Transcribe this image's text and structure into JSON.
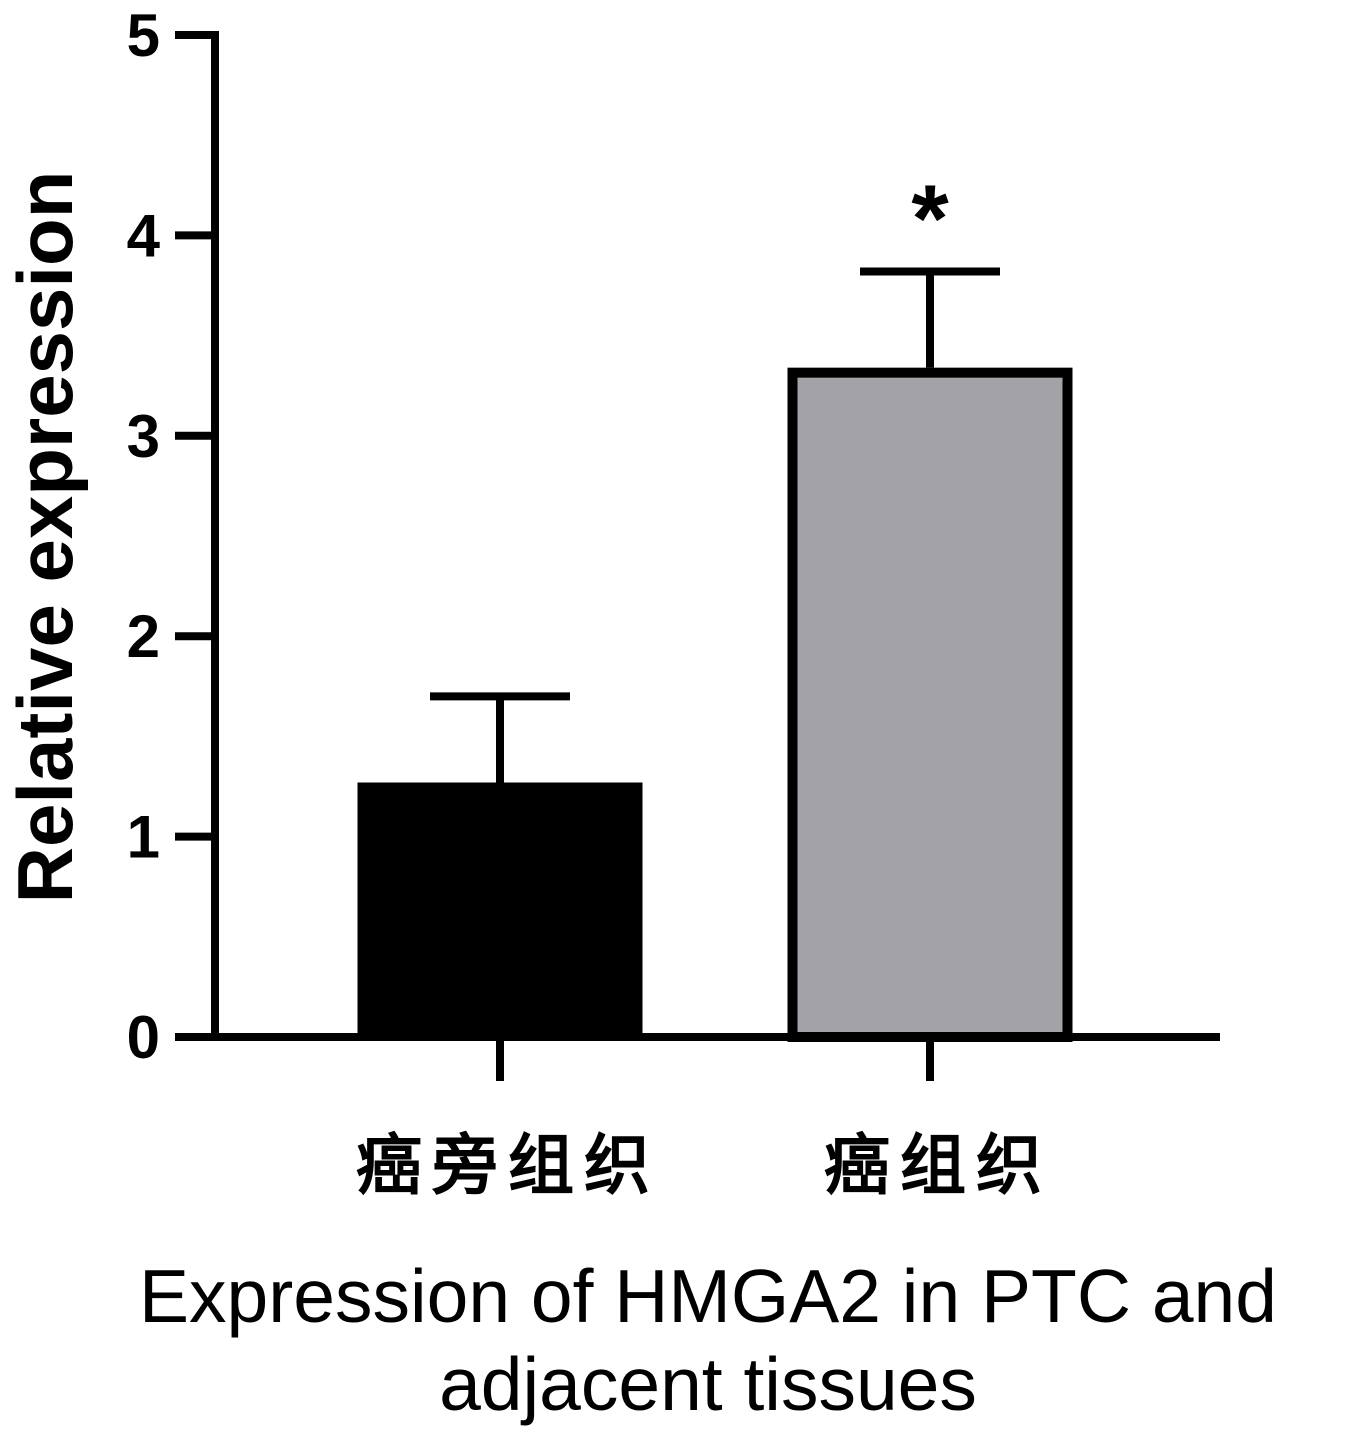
{
  "chart_data": {
    "type": "bar",
    "categories": [
      "癌旁组织",
      "癌组织"
    ],
    "values": [
      1.27,
      3.34
    ],
    "error_upper": [
      0.43,
      0.48
    ],
    "significance": [
      "",
      "*"
    ],
    "ylabel": "Relative expression",
    "xlabel": "",
    "ylim": [
      0,
      5
    ],
    "yticks": [
      0,
      1,
      2,
      3,
      4,
      5
    ],
    "colors": [
      "#000000",
      "#a3a3a7"
    ],
    "grid": false,
    "legend": "none"
  },
  "caption": {
    "line1": "Expression of HMGA2 in PTC and",
    "line2": "adjacent tissues"
  }
}
